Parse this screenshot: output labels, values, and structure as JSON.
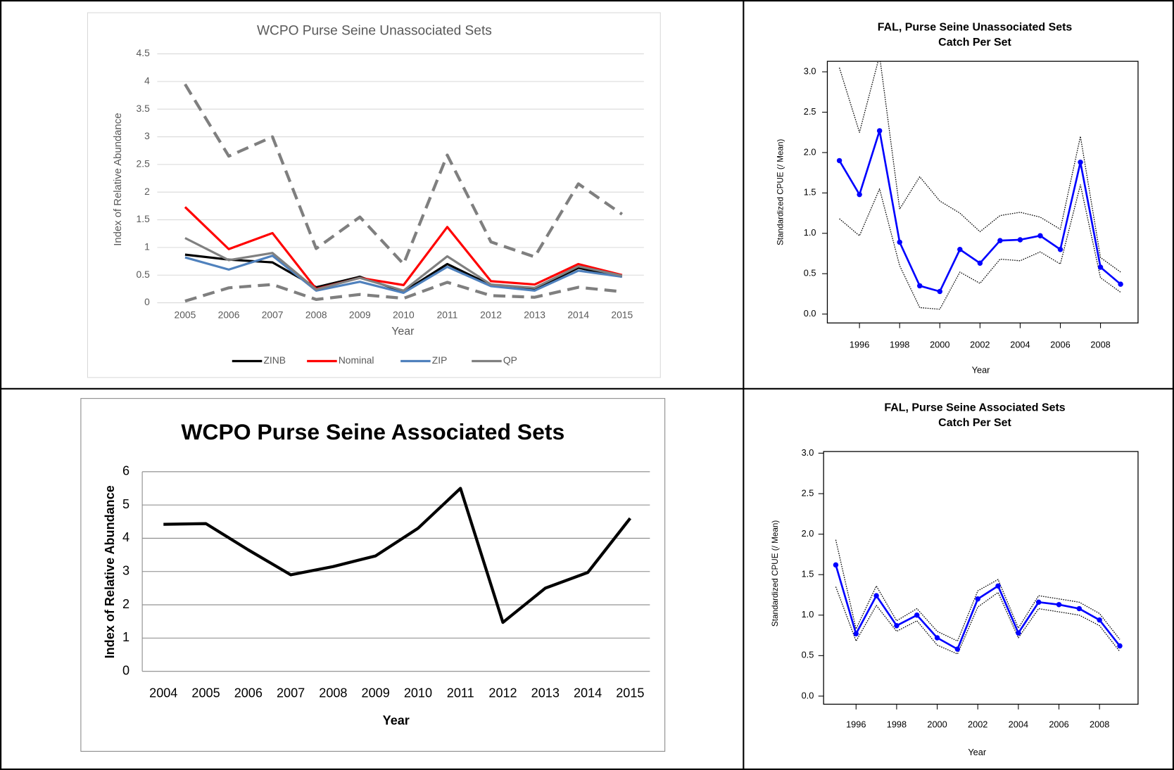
{
  "chart_data": [
    {
      "type": "line",
      "title": "WCPO Purse Seine Unassociated Sets",
      "xlabel": "Year",
      "ylabel": "Index of Relative Abundance",
      "categories": [
        "2005",
        "2006",
        "2007",
        "2008",
        "2009",
        "2010",
        "2011",
        "2012",
        "2013",
        "2014",
        "2015"
      ],
      "ylim": [
        0,
        4.5
      ],
      "yticks": [
        0,
        0.5,
        1,
        1.5,
        2,
        2.5,
        3,
        3.5,
        4,
        4.5
      ],
      "grid": true,
      "legend": "bottom",
      "series": [
        {
          "color": "#7f7f7f",
          "style": "dashed",
          "values": [
            3.95,
            2.65,
            3.0,
            0.98,
            1.55,
            0.7,
            2.67,
            1.1,
            0.83,
            2.15,
            1.6
          ]
        },
        {
          "color": "#7f7f7f",
          "style": "dashed",
          "values": [
            0.03,
            0.27,
            0.33,
            0.06,
            0.15,
            0.08,
            0.37,
            0.13,
            0.1,
            0.28,
            0.2
          ]
        },
        {
          "name": "ZINB",
          "color": "#000000",
          "values": [
            0.87,
            0.78,
            0.73,
            0.28,
            0.47,
            0.2,
            0.7,
            0.32,
            0.25,
            0.63,
            0.47
          ]
        },
        {
          "name": "Nominal",
          "color": "#ff0000",
          "values": [
            1.73,
            0.97,
            1.26,
            0.25,
            0.45,
            0.32,
            1.37,
            0.39,
            0.33,
            0.7,
            0.5
          ]
        },
        {
          "name": "ZIP",
          "color": "#4f81bd",
          "values": [
            0.82,
            0.6,
            0.85,
            0.22,
            0.38,
            0.18,
            0.65,
            0.3,
            0.22,
            0.58,
            0.47
          ]
        },
        {
          "name": "QP",
          "color": "#808080",
          "values": [
            1.17,
            0.77,
            0.9,
            0.24,
            0.45,
            0.22,
            0.84,
            0.33,
            0.27,
            0.66,
            0.49
          ]
        }
      ]
    },
    {
      "type": "line",
      "title": "FAL, Purse Seine Unassociated Sets",
      "subtitle": "Catch Per Set",
      "xlabel": "Year",
      "ylabel": "Standardized CPUE (/ Mean)",
      "x": [
        1995,
        1996,
        1997,
        1998,
        1999,
        2000,
        2001,
        2002,
        2003,
        2004,
        2005,
        2006,
        2007,
        2008,
        2009
      ],
      "xlim": [
        1994.4,
        2009.87
      ],
      "xticks": [
        1996,
        1998,
        2000,
        2002,
        2004,
        2006,
        2008
      ],
      "ylim": [
        -0.11,
        3.13
      ],
      "yticks": [
        {
          "value": 0,
          "label": "0.0"
        },
        0.5,
        {
          "value": 1,
          "label": "1.0"
        },
        1.5,
        {
          "value": 2,
          "label": "2.0"
        },
        2.5,
        {
          "value": 3,
          "label": "3.0"
        }
      ],
      "grid": false,
      "series": [
        {
          "color": "#000000",
          "style": "dotted",
          "values": [
            3.05,
            2.25,
            3.2,
            1.3,
            1.7,
            1.4,
            1.25,
            1.02,
            1.22,
            1.26,
            1.2,
            1.05,
            2.2,
            0.7,
            0.52
          ]
        },
        {
          "color": "#000000",
          "style": "dotted",
          "values": [
            1.18,
            0.97,
            1.55,
            0.6,
            0.08,
            0.06,
            0.52,
            0.38,
            0.68,
            0.66,
            0.77,
            0.62,
            1.6,
            0.45,
            0.27
          ]
        },
        {
          "color": "#0000ff",
          "markers": true,
          "values": [
            1.9,
            1.48,
            2.27,
            0.89,
            0.35,
            0.28,
            0.8,
            0.63,
            0.91,
            0.92,
            0.97,
            0.8,
            1.88,
            0.58,
            0.37
          ]
        }
      ]
    },
    {
      "type": "line",
      "title": "WCPO Purse Seine Associated Sets",
      "xlabel": "Year",
      "ylabel": "Index of Relative Abundance",
      "categories": [
        "2004",
        "2005",
        "2006",
        "2007",
        "2008",
        "2009",
        "2010",
        "2011",
        "2012",
        "2013",
        "2014",
        "2015"
      ],
      "ylim": [
        0,
        6
      ],
      "yticks": [
        0,
        1,
        2,
        3,
        4,
        5,
        6
      ],
      "grid": true,
      "series": [
        {
          "color": "#000000",
          "values": [
            4.42,
            4.44,
            3.65,
            2.9,
            3.15,
            3.47,
            4.3,
            5.5,
            1.47,
            2.5,
            2.97,
            4.6
          ]
        }
      ]
    },
    {
      "type": "line",
      "title": "FAL, Purse Seine Associated Sets",
      "subtitle": "Catch Per Set",
      "xlabel": "Year",
      "ylabel": "Standardized CPUE (/ Mean)",
      "x": [
        1995,
        1996,
        1997,
        1998,
        1999,
        2000,
        2001,
        2002,
        2003,
        2004,
        2005,
        2006,
        2007,
        2008,
        2009
      ],
      "xlim": [
        1994.4,
        2009.9
      ],
      "xticks": [
        1996,
        1998,
        2000,
        2002,
        2004,
        2006,
        2008
      ],
      "ylim": [
        -0.1,
        3.02
      ],
      "yticks": [
        {
          "value": 0,
          "label": "0.0"
        },
        0.5,
        {
          "value": 1,
          "label": "1.0"
        },
        1.5,
        {
          "value": 2,
          "label": "2.0"
        },
        2.5,
        {
          "value": 3,
          "label": "3.0"
        }
      ],
      "grid": false,
      "series": [
        {
          "color": "#000000",
          "style": "dotted",
          "values": [
            1.93,
            0.83,
            1.36,
            0.93,
            1.08,
            0.8,
            0.68,
            1.3,
            1.44,
            0.84,
            1.24,
            1.2,
            1.16,
            1.02,
            0.7
          ]
        },
        {
          "color": "#000000",
          "style": "dotted",
          "values": [
            1.35,
            0.68,
            1.12,
            0.8,
            0.93,
            0.63,
            0.52,
            1.1,
            1.28,
            0.72,
            1.08,
            1.04,
            1.0,
            0.87,
            0.55
          ]
        },
        {
          "color": "#0000ff",
          "markers": true,
          "values": [
            1.62,
            0.77,
            1.24,
            0.87,
            1.0,
            0.72,
            0.58,
            1.2,
            1.36,
            0.78,
            1.16,
            1.13,
            1.08,
            0.94,
            0.62
          ]
        }
      ]
    }
  ]
}
